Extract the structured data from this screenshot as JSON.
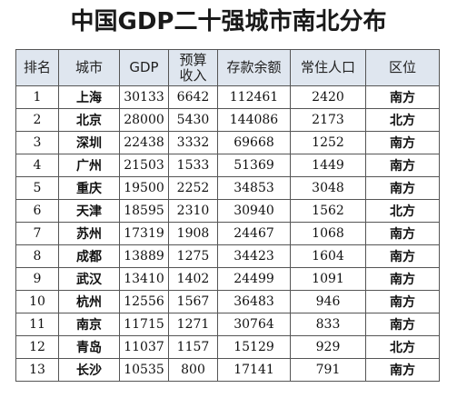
{
  "title": "中国GDP二十强城市南北分布",
  "table": {
    "headers": [
      "排名",
      "城市",
      "GDP",
      "预算收入",
      "存款余额",
      "常住人口",
      "区位"
    ],
    "header_lines": {
      "budget_line1": "预算",
      "budget_line2": "收入"
    },
    "rows": [
      [
        "1",
        "上海",
        "30133",
        "6642",
        "112461",
        "2420",
        "南方"
      ],
      [
        "2",
        "北京",
        "28000",
        "5430",
        "144086",
        "2173",
        "北方"
      ],
      [
        "3",
        "深圳",
        "22438",
        "3332",
        "69668",
        "1252",
        "南方"
      ],
      [
        "4",
        "广州",
        "21503",
        "1533",
        "51369",
        "1449",
        "南方"
      ],
      [
        "5",
        "重庆",
        "19500",
        "2252",
        "34853",
        "3048",
        "南方"
      ],
      [
        "6",
        "天津",
        "18595",
        "2310",
        "30940",
        "1562",
        "北方"
      ],
      [
        "7",
        "苏州",
        "17319",
        "1908",
        "24467",
        "1068",
        "南方"
      ],
      [
        "8",
        "成都",
        "13889",
        "1275",
        "34423",
        "1604",
        "南方"
      ],
      [
        "9",
        "武汉",
        "13410",
        "1402",
        "24499",
        "1091",
        "南方"
      ],
      [
        "10",
        "杭州",
        "12556",
        "1567",
        "36483",
        "946",
        "南方"
      ],
      [
        "11",
        "南京",
        "11715",
        "1271",
        "30764",
        "833",
        "南方"
      ],
      [
        "12",
        "青岛",
        "11037",
        "1157",
        "15129",
        "929",
        "北方"
      ],
      [
        "13",
        "长沙",
        "10535",
        "800",
        "17141",
        "791",
        "南方"
      ]
    ]
  }
}
